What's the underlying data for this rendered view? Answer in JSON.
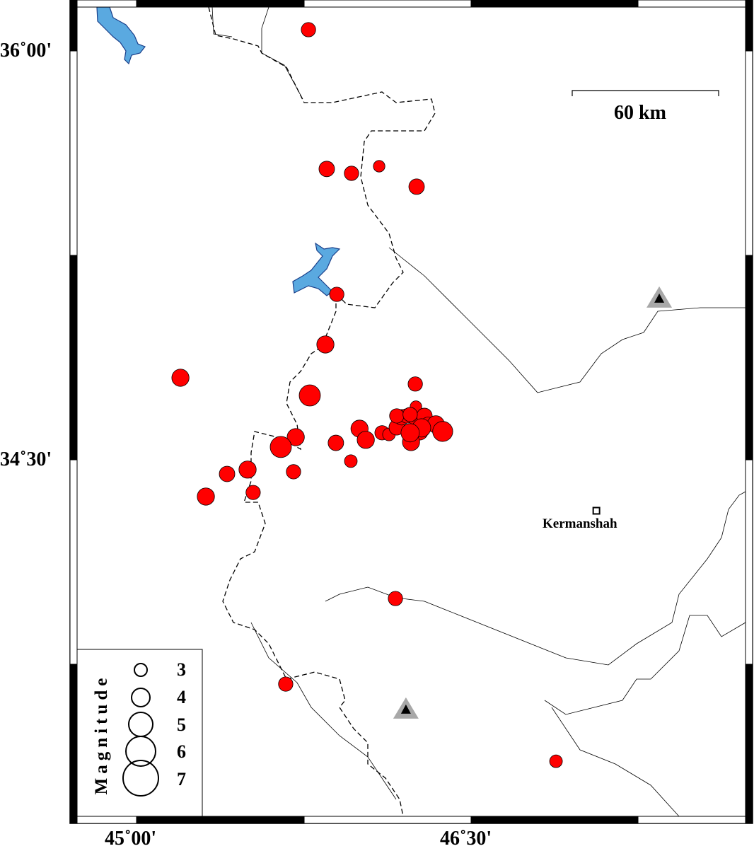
{
  "map": {
    "extent": {
      "lon": [
        44.7,
        47.76
      ],
      "lat": [
        33.166,
        36.187
      ]
    },
    "frame_interval_minutes": 45,
    "lon_ticks": [
      {
        "value": 45.0,
        "label": "45˚00'"
      },
      {
        "value": 46.5,
        "label": "46˚30'"
      }
    ],
    "lat_ticks": [
      {
        "value": 36.0,
        "label": "36˚00'"
      },
      {
        "value": 34.5,
        "label": "34˚30'"
      }
    ],
    "scale_bar": {
      "label": "60 km",
      "length_km": 60
    },
    "colors": {
      "event": "#ff0000",
      "lake": "#5aa9e0",
      "station": "#000000",
      "station_halo": "#a8a8a8"
    },
    "city": {
      "name": "Kermanshah",
      "lon": 47.062,
      "lat": 34.313
    },
    "stations": [
      {
        "lon": 47.344,
        "lat": 35.092
      },
      {
        "lon": 46.208,
        "lat": 33.584
      }
    ],
    "legend": {
      "title": "Magnitude",
      "magnitudes": [
        "3",
        "4",
        "5",
        "6",
        "7"
      ]
    },
    "events": [
      {
        "lon": 45.771,
        "lat": 36.078,
        "mag": 3.3
      },
      {
        "lon": 45.853,
        "lat": 35.567,
        "mag": 3.5
      },
      {
        "lon": 45.964,
        "lat": 35.551,
        "mag": 3.3
      },
      {
        "lon": 46.088,
        "lat": 35.577,
        "mag": 2.8
      },
      {
        "lon": 46.256,
        "lat": 35.502,
        "mag": 3.5
      },
      {
        "lon": 45.898,
        "lat": 35.107,
        "mag": 3.3
      },
      {
        "lon": 45.847,
        "lat": 34.923,
        "mag": 3.8
      },
      {
        "lon": 45.197,
        "lat": 34.801,
        "mag": 3.8
      },
      {
        "lon": 45.777,
        "lat": 34.736,
        "mag": 4.5
      },
      {
        "lon": 46.25,
        "lat": 34.778,
        "mag": 3.3
      },
      {
        "lon": 45.714,
        "lat": 34.583,
        "mag": 3.8
      },
      {
        "lon": 45.647,
        "lat": 34.547,
        "mag": 4.5
      },
      {
        "lon": 45.894,
        "lat": 34.562,
        "mag": 3.5
      },
      {
        "lon": 46.0,
        "lat": 34.614,
        "mag": 3.8
      },
      {
        "lon": 46.028,
        "lat": 34.573,
        "mag": 3.8
      },
      {
        "lon": 45.961,
        "lat": 34.495,
        "mag": 3.0
      },
      {
        "lon": 45.498,
        "lat": 34.464,
        "mag": 3.8
      },
      {
        "lon": 45.406,
        "lat": 34.448,
        "mag": 3.5
      },
      {
        "lon": 45.704,
        "lat": 34.456,
        "mag": 3.3
      },
      {
        "lon": 45.523,
        "lat": 34.38,
        "mag": 3.3
      },
      {
        "lon": 45.311,
        "lat": 34.365,
        "mag": 3.8
      },
      {
        "lon": 46.161,
        "lat": 33.991,
        "mag": 3.3
      },
      {
        "lon": 45.669,
        "lat": 33.677,
        "mag": 3.3
      },
      {
        "lon": 46.881,
        "lat": 33.394,
        "mag": 3.0
      },
      {
        "lon": 46.101,
        "lat": 34.599,
        "mag": 3.3
      },
      {
        "lon": 46.132,
        "lat": 34.593,
        "mag": 3.0
      },
      {
        "lon": 46.167,
        "lat": 34.619,
        "mag": 3.5
      },
      {
        "lon": 46.189,
        "lat": 34.656,
        "mag": 3.5
      },
      {
        "lon": 46.212,
        "lat": 34.661,
        "mag": 3.3
      },
      {
        "lon": 46.167,
        "lat": 34.661,
        "mag": 3.3
      },
      {
        "lon": 46.253,
        "lat": 34.695,
        "mag": 2.8
      },
      {
        "lon": 46.259,
        "lat": 34.643,
        "mag": 3.5
      },
      {
        "lon": 46.291,
        "lat": 34.661,
        "mag": 3.5
      },
      {
        "lon": 46.307,
        "lat": 34.63,
        "mag": 3.3
      },
      {
        "lon": 46.342,
        "lat": 34.63,
        "mag": 3.8
      },
      {
        "lon": 46.373,
        "lat": 34.604,
        "mag": 4.3
      },
      {
        "lon": 46.269,
        "lat": 34.604,
        "mag": 3.8
      },
      {
        "lon": 46.278,
        "lat": 34.617,
        "mag": 4.0
      },
      {
        "lon": 46.231,
        "lat": 34.565,
        "mag": 3.8
      },
      {
        "lon": 46.227,
        "lat": 34.599,
        "mag": 4.0
      },
      {
        "lon": 46.227,
        "lat": 34.666,
        "mag": 3.3
      }
    ]
  }
}
